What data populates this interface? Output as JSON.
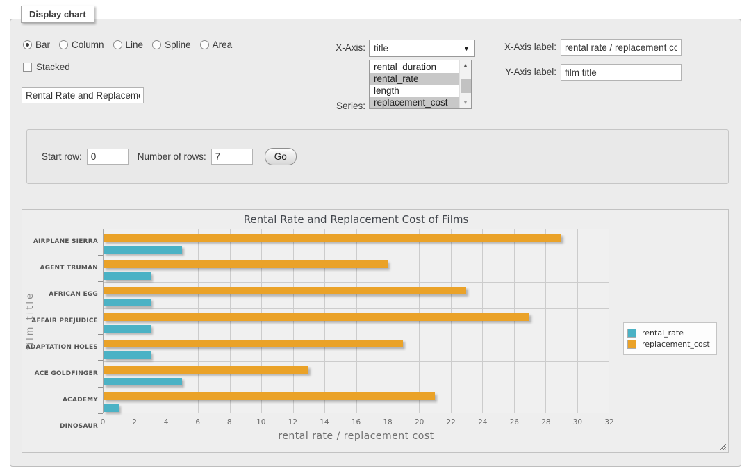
{
  "panel_legend": "Display chart",
  "chart_types": {
    "options": [
      {
        "label": "Bar",
        "selected": true
      },
      {
        "label": "Column",
        "selected": false
      },
      {
        "label": "Line",
        "selected": false
      },
      {
        "label": "Spline",
        "selected": false
      },
      {
        "label": "Area",
        "selected": false
      }
    ]
  },
  "stacked": {
    "label": "Stacked",
    "checked": false
  },
  "chart_title_input": {
    "value": "Rental Rate and Replacemer"
  },
  "x_axis_select": {
    "label": "X-Axis:",
    "value": "title"
  },
  "series_list": {
    "label": "Series:",
    "options": [
      {
        "label": "rental_duration",
        "selected": false
      },
      {
        "label": "rental_rate",
        "selected": true
      },
      {
        "label": "length",
        "selected": false
      },
      {
        "label": "replacement_cost",
        "selected": true
      }
    ]
  },
  "x_axis_label_field": {
    "label": "X-Axis label:",
    "value": "rental rate / replacement cost"
  },
  "y_axis_label_field": {
    "label": "Y-Axis label:",
    "value": "film title"
  },
  "row_controls": {
    "start_label": "Start row:",
    "start_value": "0",
    "count_label": "Number of rows:",
    "count_value": "7",
    "go_label": "Go"
  },
  "chart_data": {
    "type": "bar",
    "orientation": "horizontal",
    "title": "Rental Rate and Replacement Cost of Films",
    "categories": [
      "AIRPLANE SIERRA",
      "AGENT TRUMAN",
      "AFRICAN EGG",
      "AFFAIR PREJUDICE",
      "ADAPTATION HOLES",
      "ACE GOLDFINGER",
      "ACADEMY DINOSAUR"
    ],
    "series": [
      {
        "name": "rental_rate",
        "color": "#4bb2c5",
        "values": [
          4.99,
          2.99,
          2.99,
          2.99,
          2.99,
          4.99,
          0.99
        ]
      },
      {
        "name": "replacement_cost",
        "color": "#eaa228",
        "values": [
          28.99,
          17.99,
          22.99,
          26.99,
          18.99,
          12.99,
          20.99
        ]
      }
    ],
    "xlabel": "rental rate / replacement cost",
    "ylabel": "film title",
    "xlim": [
      0,
      32
    ],
    "xticks": [
      0,
      2,
      4,
      6,
      8,
      10,
      12,
      14,
      16,
      18,
      20,
      22,
      24,
      26,
      28,
      30,
      32
    ],
    "grid": true,
    "legend_position": "right"
  }
}
